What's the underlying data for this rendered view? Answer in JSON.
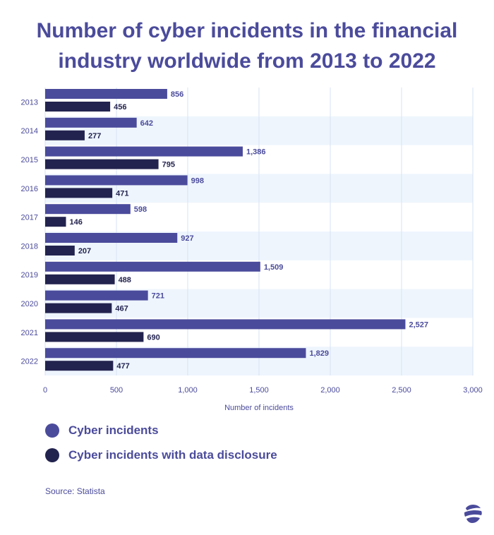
{
  "chart_data": {
    "type": "bar",
    "orientation": "horizontal",
    "title": "Number of cyber incidents in the financial industry worldwide from 2013 to 2022",
    "categories": [
      "2013",
      "2014",
      "2015",
      "2016",
      "2017",
      "2018",
      "2019",
      "2020",
      "2021",
      "2022"
    ],
    "series": [
      {
        "name": "Cyber incidents",
        "color": "#4b4b9c",
        "values": [
          856,
          642,
          1386,
          998,
          598,
          927,
          1509,
          721,
          2527,
          1829
        ],
        "value_labels": [
          "856",
          "642",
          "1,386",
          "998",
          "598",
          "927",
          "1,509",
          "721",
          "2,527",
          "1,829"
        ]
      },
      {
        "name": "Cyber incidents with data disclosure",
        "color": "#23234f",
        "values": [
          456,
          277,
          795,
          471,
          146,
          207,
          488,
          467,
          690,
          477
        ],
        "value_labels": [
          "456",
          "277",
          "795",
          "471",
          "146",
          "207",
          "488",
          "467",
          "690",
          "477"
        ]
      }
    ],
    "xlabel": "Number of incidents",
    "ylabel": "",
    "xlim": [
      0,
      3000
    ],
    "xticks": [
      0,
      500,
      1000,
      1500,
      2000,
      2500,
      3000
    ],
    "xtick_labels": [
      "0",
      "500",
      "1,000",
      "1,500",
      "2,000",
      "2,500",
      "3,000"
    ],
    "grid": true,
    "legend_position": "bottom-left"
  },
  "source": "Source: Statista",
  "colors": {
    "title": "#4b4b9c",
    "band": "#eef5fd",
    "grid": "#d6e3f5",
    "axis_text": "#4b4b9c"
  },
  "logo_icon": "globe-logo-icon"
}
